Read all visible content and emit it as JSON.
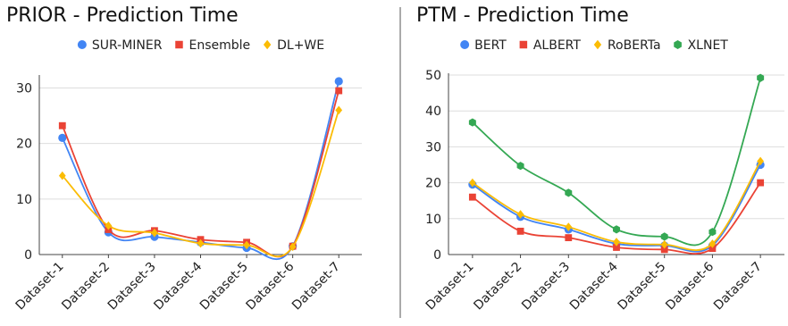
{
  "chart_data": [
    {
      "type": "line",
      "title": "PRIOR - Prediction Time",
      "xlabel": "",
      "ylabel": "",
      "categories": [
        "Dataset-1",
        "Dataset-2",
        "Dataset-3",
        "Dataset-4",
        "Dataset-5",
        "Dataset-6",
        "Dataset-7"
      ],
      "ylim": [
        0,
        32
      ],
      "yticks": [
        0,
        10,
        20,
        30
      ],
      "grid": true,
      "legend_position": "top",
      "series": [
        {
          "name": "SUR-MINER",
          "marker": "circle",
          "color": "#4285F4",
          "values": [
            21.0,
            4.0,
            3.2,
            2.2,
            1.2,
            1.5,
            31.2
          ]
        },
        {
          "name": "Ensemble",
          "marker": "square",
          "color": "#EA4335",
          "values": [
            23.2,
            4.5,
            4.3,
            2.7,
            2.2,
            1.5,
            29.5
          ]
        },
        {
          "name": "DL+WE",
          "marker": "diamond",
          "color": "#FBBC04",
          "values": [
            14.2,
            5.2,
            3.9,
            2.0,
            1.7,
            1.4,
            26.0
          ]
        }
      ]
    },
    {
      "type": "line",
      "title": "PTM - Prediction Time",
      "xlabel": "",
      "ylabel": "",
      "categories": [
        "Dataset-1",
        "Dataset-2",
        "Dataset-3",
        "Dataset-4",
        "Dataset-5",
        "Dataset-6",
        "Dataset-7"
      ],
      "ylim": [
        0,
        50
      ],
      "yticks": [
        0,
        10,
        20,
        30,
        40,
        50
      ],
      "grid": true,
      "legend_position": "top",
      "series": [
        {
          "name": "BERT",
          "marker": "circle",
          "color": "#4285F4",
          "values": [
            19.5,
            10.5,
            7.0,
            3.0,
            2.5,
            2.5,
            25.0
          ]
        },
        {
          "name": "ALBERT",
          "marker": "square",
          "color": "#EA4335",
          "values": [
            16.0,
            6.5,
            4.7,
            2.0,
            1.4,
            1.7,
            20.0
          ]
        },
        {
          "name": "RoBERTa",
          "marker": "diamond",
          "color": "#FBBC04",
          "values": [
            20.0,
            11.2,
            7.7,
            3.5,
            2.8,
            3.0,
            26.0
          ]
        },
        {
          "name": "XLNET",
          "marker": "hexagon",
          "color": "#34A853",
          "values": [
            36.8,
            24.7,
            17.2,
            7.0,
            5.0,
            6.3,
            49.2
          ]
        }
      ]
    }
  ]
}
